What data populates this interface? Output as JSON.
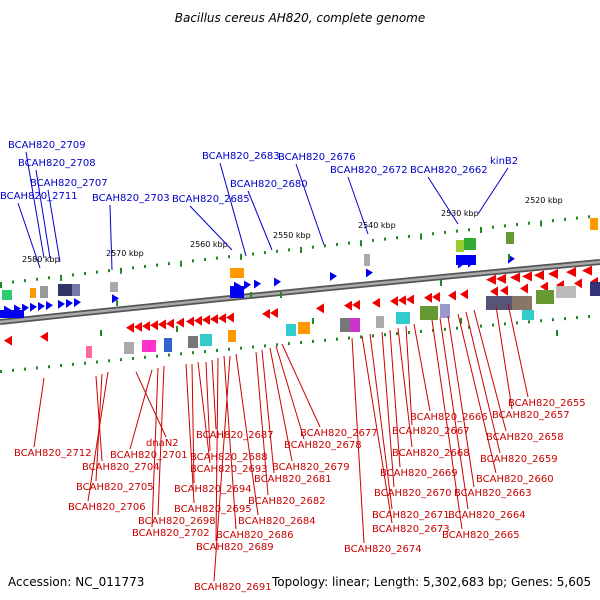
{
  "title": "Bacillus cereus AH820, complete genome",
  "footer": {
    "accession": "Accession: NC_011773",
    "summary": "Topology: linear; Length: 5,302,683 bp; Genes: 5,605"
  },
  "scale_labels": [
    "2580 kbp",
    "2570 kbp",
    "2560 kbp",
    "2550 kbp",
    "2540 kbp",
    "2530 kbp",
    "2520 kbp"
  ],
  "top_genes": [
    "BCAH820_2709",
    "BCAH820_2708",
    "BCAH820_2707",
    "BCAH820_2711",
    "BCAH820_2703",
    "BCAH820_2683",
    "BCAH820_2676",
    "BCAH820_2680",
    "BCAH820_2685",
    "BCAH820_2672",
    "kinB2",
    "BCAH820_2662"
  ],
  "bottom_genes": [
    "BCAH820_2712",
    "BCAH820_2704",
    "BCAH820_2705",
    "BCAH820_2706",
    "dnaN2",
    "BCAH820_2701",
    "BCAH820_2702",
    "BCAH820_2698",
    "BCAH820_2695",
    "BCAH820_2694",
    "BCAH820_2693",
    "BCAH820_2688",
    "BCAH820_2687",
    "BCAH820_2689",
    "BCAH820_2686",
    "BCAH820_2691",
    "BCAH820_2684",
    "BCAH820_2682",
    "BCAH820_2681",
    "BCAH820_2679",
    "BCAH820_2678",
    "BCAH820_2677",
    "BCAH820_2674",
    "BCAH820_2673",
    "BCAH820_2671",
    "BCAH820_2670",
    "BCAH820_2669",
    "BCAH820_2668",
    "BCAH820_2667",
    "BCAH820_2666",
    "BCAH820_2665",
    "BCAH820_2664",
    "BCAH820_2663",
    "BCAH820_2660",
    "BCAH820_2659",
    "BCAH820_2658",
    "BCAH820_2657",
    "BCAH820_2655"
  ],
  "colors": {
    "forward_strand": "#0000ee",
    "reverse_strand": "#ee0000",
    "backbone": "#808080",
    "tick": "#1f8a1f"
  }
}
